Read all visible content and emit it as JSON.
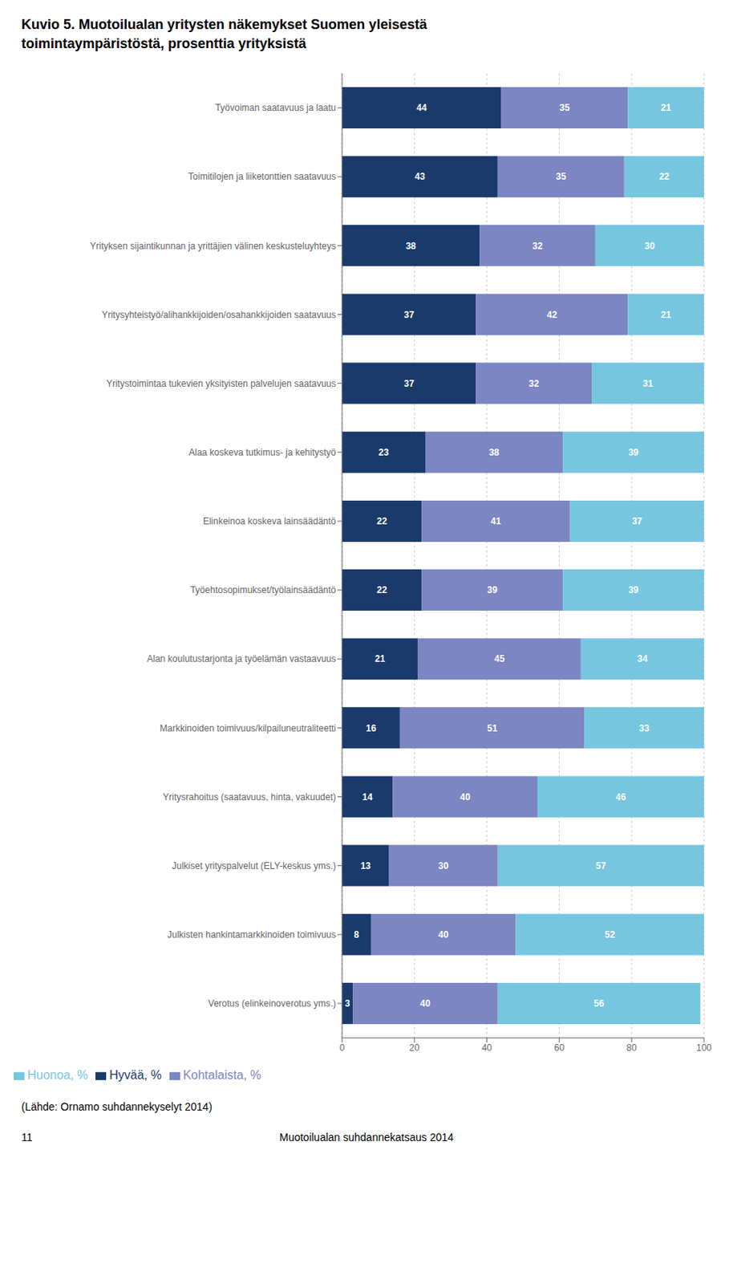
{
  "chart_data": {
    "type": "bar",
    "orientation": "horizontal",
    "stacked": true,
    "data_labels": true,
    "grid": true,
    "legend": "bottom",
    "title": "Kuvio 5. Muotoilualan yritysten näkemykset Suomen yleisestä\ntoimintaympäristöstä, prosenttia yrityksistä",
    "categories": [
      "Työvoiman saatavuus ja laatu",
      "Toimitilojen ja liiketonttien saatavuus",
      "Yrityksen sijaintikunnan ja yrittäjien välinen keskusteluyhteys",
      "Yritysyhteistyö/alihankkijoiden/osahankkijoiden saatavuus",
      "Yritystoimintaa tukevien yksityisten palvelujen saatavuus",
      "Alaa koskeva tutkimus- ja kehitystyö",
      "Elinkeinoa koskeva lainsäädäntö",
      "Työehtosopimukset/työlainsäädäntö",
      "Alan koulutustarjonta ja työelämän vastaavuus",
      "Markkinoiden toimivuus/kilpailuneutraliteetti",
      "Yritysrahoitus (saatavuus, hinta, vakuudet)",
      "Julkiset yrityspalvelut (ELY-keskus yms.)",
      "Julkisten hankintamarkkinoiden toimivuus",
      "Verotus (elinkeinoverotus yms.)"
    ],
    "series": [
      {
        "name": "Hyvää, %",
        "color": "#1a3a6b",
        "values": [
          44,
          43,
          38,
          37,
          37,
          23,
          22,
          22,
          21,
          16,
          14,
          13,
          8,
          3
        ]
      },
      {
        "name": "Kohtalaista, %",
        "color": "#7b86c2",
        "values": [
          35,
          35,
          32,
          42,
          32,
          38,
          41,
          39,
          45,
          51,
          40,
          30,
          40,
          40
        ]
      },
      {
        "name": "Huonoa, %",
        "color": "#76c6e0",
        "values": [
          21,
          22,
          30,
          21,
          31,
          39,
          37,
          39,
          34,
          33,
          46,
          57,
          52,
          56
        ]
      }
    ],
    "xlim": [
      0,
      100
    ],
    "xticks": [
      0,
      20,
      40,
      60,
      80,
      100
    ],
    "annotations": [
      "(Lähde: Ornamo suhdannekyselyt 2014)",
      "11",
      "Muotoilualan suhdannekatsaus 2014"
    ]
  }
}
